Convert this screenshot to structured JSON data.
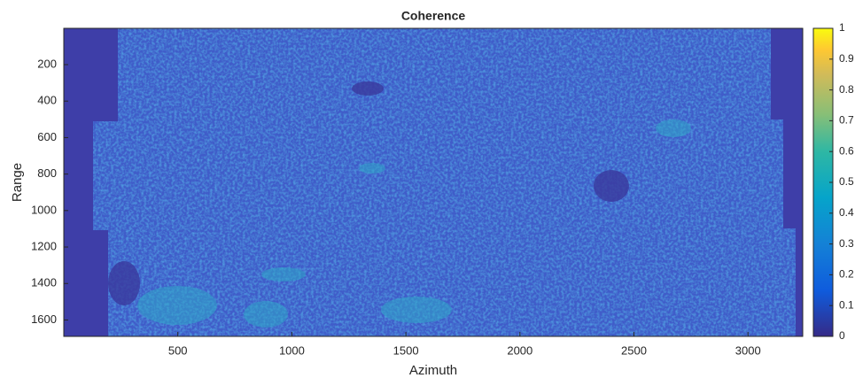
{
  "chart_data": {
    "type": "heatmap",
    "title": "Coherence",
    "x_label": "Azimuth",
    "y_label": "Range",
    "xlim": [
      0,
      3240
    ],
    "xticks": [
      500,
      1000,
      1500,
      2000,
      2500,
      3000
    ],
    "ylim": [
      1,
      1690
    ],
    "y_reversed": true,
    "yticks": [
      200,
      400,
      600,
      800,
      1000,
      1200,
      1400,
      1600
    ],
    "colorbar": {
      "clim": [
        0,
        1
      ],
      "ticks": [
        0,
        0.1,
        0.2,
        0.3,
        0.4,
        0.5,
        0.6,
        0.7,
        0.8,
        0.9,
        1
      ],
      "colormap": "parula"
    }
  }
}
